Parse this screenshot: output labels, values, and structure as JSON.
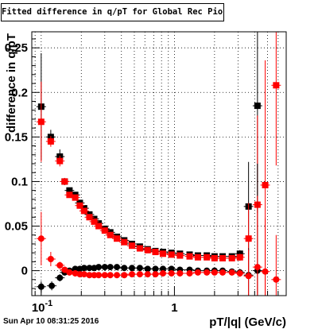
{
  "chart_data": {
    "type": "scatter",
    "title": "Fitted difference in q/pT for Global Rec Pion EtapT",
    "xlabel": "pT/|q| (GeV/c)",
    "ylabel": "difference in q/pT",
    "x_scale": "log",
    "xlim": [
      0.085,
      6.9
    ],
    "ylim": [
      -0.028,
      0.268
    ],
    "grid": true,
    "x_ticks": [
      {
        "v": 0.1,
        "label": "10-1"
      },
      {
        "v": 1,
        "label": "1"
      }
    ],
    "y_ticks": [
      {
        "v": 0,
        "label": "0"
      },
      {
        "v": 0.05,
        "label": "0.05"
      },
      {
        "v": 0.1,
        "label": "0.1"
      },
      {
        "v": 0.15,
        "label": "0.15"
      },
      {
        "v": 0.2,
        "label": "0.2"
      },
      {
        "v": 0.25,
        "label": "0.25"
      }
    ],
    "series": [
      {
        "color": "#000000",
        "marker": "square",
        "points": [
          [
            0.1,
            0.184,
            0.06
          ],
          [
            0.118,
            0.15,
            0.008
          ],
          [
            0.138,
            0.128,
            0.008
          ],
          [
            0.15,
            0.1,
            0.004
          ],
          [
            0.163,
            0.09,
            0.003
          ],
          [
            0.18,
            0.085,
            0.002
          ],
          [
            0.195,
            0.076,
            0.002
          ],
          [
            0.21,
            0.07,
            0.002
          ],
          [
            0.23,
            0.063,
            0.002
          ],
          [
            0.25,
            0.058,
            0.002
          ],
          [
            0.27,
            0.053,
            0.002
          ],
          [
            0.3,
            0.047,
            0.002
          ],
          [
            0.33,
            0.043,
            0.002
          ],
          [
            0.37,
            0.038,
            0.002
          ],
          [
            0.42,
            0.034,
            0.002
          ],
          [
            0.48,
            0.03,
            0.002
          ],
          [
            0.55,
            0.027,
            0.002
          ],
          [
            0.63,
            0.024,
            0.002
          ],
          [
            0.72,
            0.022,
            0.002
          ],
          [
            0.82,
            0.021,
            0.002
          ],
          [
            0.95,
            0.02,
            0.002
          ],
          [
            1.1,
            0.019,
            0.002
          ],
          [
            1.3,
            0.018,
            0.002
          ],
          [
            1.5,
            0.017,
            0.002
          ],
          [
            1.75,
            0.017,
            0.002
          ],
          [
            2.0,
            0.016,
            0.002
          ],
          [
            2.3,
            0.016,
            0.002
          ],
          [
            2.7,
            0.016,
            0.003
          ],
          [
            3.1,
            0.019,
            0.004
          ],
          [
            3.6,
            0.072,
            0.05
          ],
          [
            4.2,
            0.185,
            0.12
          ]
        ]
      },
      {
        "color": "#ff0000",
        "marker": "square",
        "points": [
          [
            0.1,
            0.167,
            0.045
          ],
          [
            0.118,
            0.145,
            0.006
          ],
          [
            0.138,
            0.123,
            0.006
          ],
          [
            0.15,
            0.1,
            0.004
          ],
          [
            0.163,
            0.085,
            0.003
          ],
          [
            0.18,
            0.082,
            0.002
          ],
          [
            0.195,
            0.073,
            0.002
          ],
          [
            0.21,
            0.067,
            0.002
          ],
          [
            0.23,
            0.06,
            0.002
          ],
          [
            0.25,
            0.055,
            0.002
          ],
          [
            0.27,
            0.05,
            0.002
          ],
          [
            0.3,
            0.045,
            0.002
          ],
          [
            0.33,
            0.04,
            0.002
          ],
          [
            0.37,
            0.036,
            0.002
          ],
          [
            0.42,
            0.032,
            0.002
          ],
          [
            0.48,
            0.028,
            0.002
          ],
          [
            0.55,
            0.025,
            0.002
          ],
          [
            0.63,
            0.023,
            0.002
          ],
          [
            0.72,
            0.021,
            0.002
          ],
          [
            0.82,
            0.019,
            0.002
          ],
          [
            0.95,
            0.018,
            0.002
          ],
          [
            1.1,
            0.017,
            0.002
          ],
          [
            1.3,
            0.016,
            0.002
          ],
          [
            1.5,
            0.015,
            0.002
          ],
          [
            1.75,
            0.015,
            0.002
          ],
          [
            2.0,
            0.014,
            0.002
          ],
          [
            2.3,
            0.014,
            0.002
          ],
          [
            2.7,
            0.014,
            0.003
          ],
          [
            3.1,
            0.015,
            0.004
          ],
          [
            3.6,
            0.036,
            0.04
          ],
          [
            4.2,
            0.074,
            0.1
          ],
          [
            4.8,
            0.096,
            0.14
          ],
          [
            5.8,
            0.208,
            0.09
          ]
        ]
      },
      {
        "color": "#000000",
        "marker": "circle",
        "points": [
          [
            0.1,
            -0.018,
            0.006
          ],
          [
            0.12,
            -0.017,
            0.005
          ],
          [
            0.138,
            -0.008,
            0.004
          ],
          [
            0.15,
            -0.002,
            0.003
          ],
          [
            0.163,
            0.0,
            0.002
          ],
          [
            0.18,
            0.002,
            0.002
          ],
          [
            0.195,
            0.002,
            0.002
          ],
          [
            0.21,
            0.003,
            0.002
          ],
          [
            0.23,
            0.003,
            0.002
          ],
          [
            0.25,
            0.003,
            0.002
          ],
          [
            0.27,
            0.004,
            0.002
          ],
          [
            0.3,
            0.004,
            0.002
          ],
          [
            0.33,
            0.004,
            0.002
          ],
          [
            0.37,
            0.004,
            0.002
          ],
          [
            0.42,
            0.003,
            0.002
          ],
          [
            0.48,
            0.003,
            0.002
          ],
          [
            0.55,
            0.003,
            0.002
          ],
          [
            0.63,
            0.002,
            0.002
          ],
          [
            0.72,
            0.002,
            0.002
          ],
          [
            0.82,
            0.002,
            0.002
          ],
          [
            0.95,
            0.002,
            0.002
          ],
          [
            1.1,
            0.001,
            0.002
          ],
          [
            1.3,
            0.001,
            0.002
          ],
          [
            1.5,
            0.0,
            0.002
          ],
          [
            1.75,
            0.0,
            0.002
          ],
          [
            2.0,
            0.0,
            0.002
          ],
          [
            2.3,
            0.0,
            0.002
          ],
          [
            2.7,
            -0.001,
            0.003
          ],
          [
            3.1,
            -0.002,
            0.004
          ],
          [
            3.6,
            -0.005,
            0.03
          ],
          [
            4.2,
            0.0,
            0.12
          ]
        ]
      },
      {
        "color": "#ff0000",
        "marker": "circle",
        "points": [
          [
            0.1,
            0.036,
            0.03
          ],
          [
            0.118,
            0.013,
            0.008
          ],
          [
            0.138,
            0.006,
            0.004
          ],
          [
            0.15,
            0.001,
            0.003
          ],
          [
            0.163,
            -0.002,
            0.002
          ],
          [
            0.18,
            -0.003,
            0.002
          ],
          [
            0.195,
            -0.004,
            0.002
          ],
          [
            0.21,
            -0.004,
            0.002
          ],
          [
            0.23,
            -0.005,
            0.002
          ],
          [
            0.25,
            -0.005,
            0.002
          ],
          [
            0.27,
            -0.005,
            0.002
          ],
          [
            0.3,
            -0.005,
            0.002
          ],
          [
            0.33,
            -0.005,
            0.002
          ],
          [
            0.37,
            -0.005,
            0.002
          ],
          [
            0.42,
            -0.005,
            0.002
          ],
          [
            0.48,
            -0.004,
            0.002
          ],
          [
            0.55,
            -0.004,
            0.002
          ],
          [
            0.63,
            -0.004,
            0.002
          ],
          [
            0.72,
            -0.004,
            0.002
          ],
          [
            0.82,
            -0.003,
            0.002
          ],
          [
            0.95,
            -0.003,
            0.002
          ],
          [
            1.1,
            -0.003,
            0.002
          ],
          [
            1.3,
            -0.003,
            0.002
          ],
          [
            1.5,
            -0.002,
            0.002
          ],
          [
            1.75,
            -0.002,
            0.002
          ],
          [
            2.0,
            -0.002,
            0.002
          ],
          [
            2.3,
            -0.002,
            0.002
          ],
          [
            2.7,
            -0.002,
            0.003
          ],
          [
            3.1,
            -0.003,
            0.004
          ],
          [
            3.6,
            -0.006,
            0.03
          ],
          [
            4.2,
            0.004,
            0.08
          ],
          [
            4.8,
            -0.001,
            0.06
          ],
          [
            5.8,
            -0.01,
            0.05
          ]
        ]
      }
    ]
  },
  "footer": {
    "timestamp": "Sun Apr 10 08:31:25 2016"
  }
}
